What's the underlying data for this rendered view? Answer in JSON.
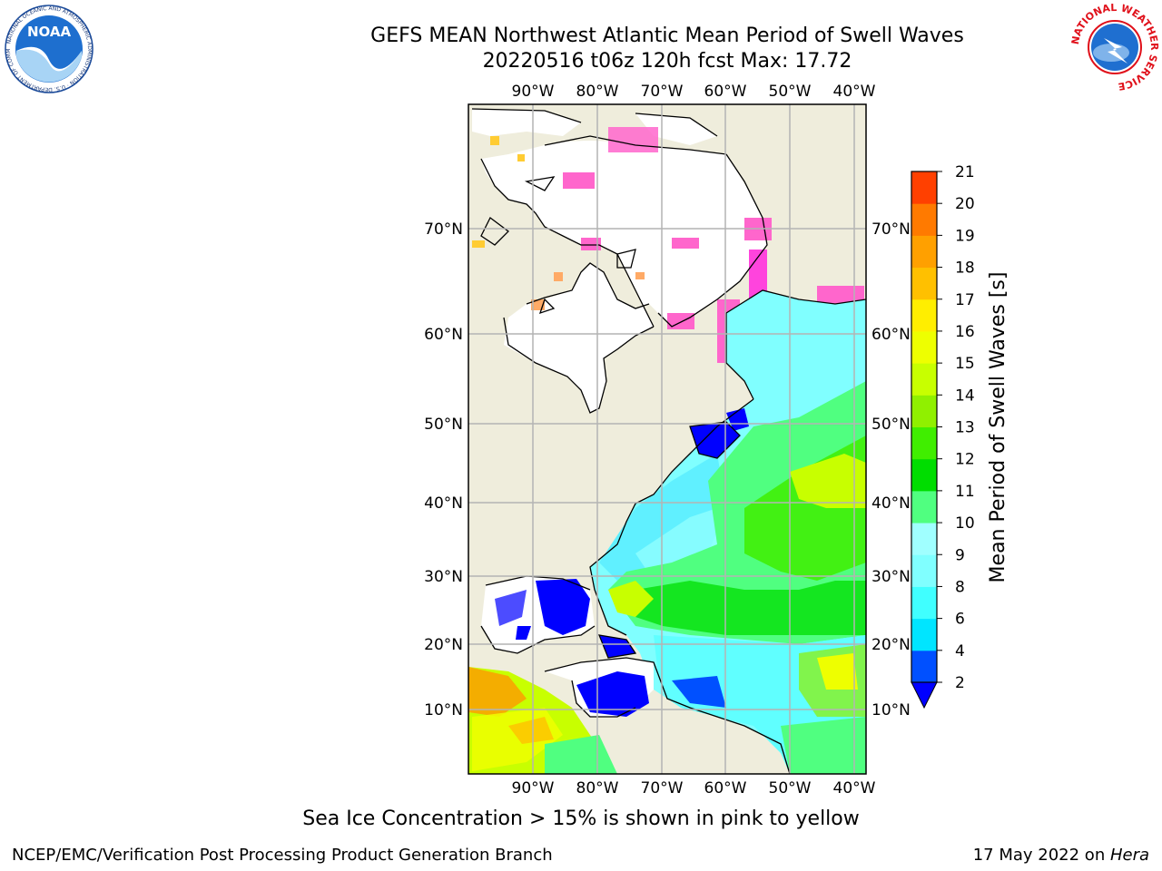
{
  "header": {
    "title_line1": "GEFS MEAN Northwest Atlantic Mean Period of Swell Waves",
    "title_line2": "20220516 t06z 120h fcst   Max: 17.72"
  },
  "logos": {
    "left": {
      "text": "NOAA",
      "ring_text": "NATIONAL OCEANIC AND ATMOSPHERIC ADMINISTRATION · U.S. DEPARTMENT OF COMMERCE"
    },
    "right": {
      "ring_text": "NATIONAL WEATHER SERVICE"
    }
  },
  "map": {
    "lon_labels": [
      "90°W",
      "80°W",
      "70°W",
      "60°W",
      "50°W",
      "40°W"
    ],
    "lat_labels": [
      "70°N",
      "60°N",
      "50°N",
      "40°N",
      "30°N",
      "20°N",
      "10°N"
    ],
    "colors": {
      "land": "#efeddc",
      "ocean_white": "#ffffff",
      "grid": "#b4b4b4"
    }
  },
  "colorbar": {
    "label": "Mean Period of Swell Waves [s]",
    "ticks": [
      "2",
      "4",
      "6",
      "8",
      "9",
      "10",
      "11",
      "12",
      "13",
      "14",
      "15",
      "16",
      "17",
      "18",
      "19",
      "20",
      "21"
    ],
    "colors": [
      "#0050ff",
      "#00e5ff",
      "#40ffff",
      "#80ffff",
      "#a0ffff",
      "#50ff80",
      "#00dd00",
      "#40ee00",
      "#90f000",
      "#c8ff00",
      "#eeff00",
      "#ffee00",
      "#ffc000",
      "#ffa000",
      "#ff7a00",
      "#ff4000",
      "#ff0000"
    ],
    "underflow_color": "#0000ff"
  },
  "caption": "Sea Ice Concentration > 15% is shown in pink to yellow",
  "footer": {
    "left": "NCEP/EMC/Verification Post Processing Product Generation Branch",
    "right_prefix": "17 May 2022 on ",
    "right_host": "Hera"
  }
}
